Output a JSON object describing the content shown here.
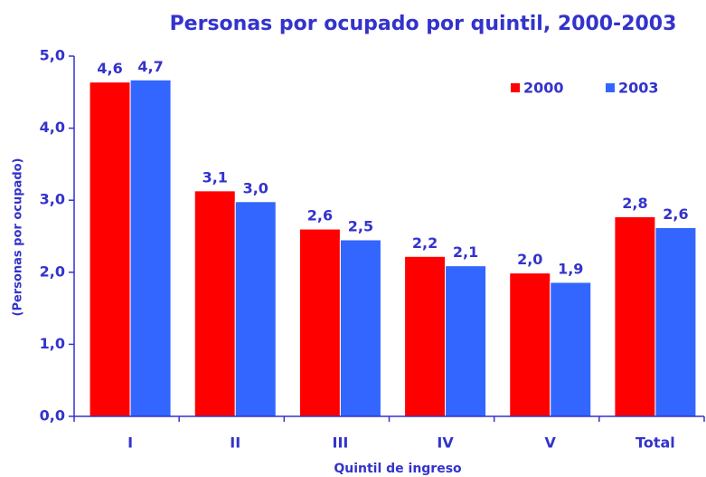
{
  "chart_data": {
    "type": "bar",
    "title": "Personas por ocupado por quintil, 2000-2003",
    "x_label": "Quintil de ingreso",
    "y_label": "(Personas por ocupado)",
    "categories": [
      "I",
      "II",
      "III",
      "IV",
      "V",
      "Total"
    ],
    "series": [
      {
        "name": "2000",
        "color": "#ff0000",
        "values": [
          4.64,
          3.13,
          2.6,
          2.22,
          1.99,
          2.77
        ],
        "value_labels": [
          "4,6",
          "3,1",
          "2,6",
          "2,2",
          "2,0",
          "2,8"
        ]
      },
      {
        "name": "2003",
        "color": "#3366ff",
        "values": [
          4.67,
          2.98,
          2.45,
          2.09,
          1.86,
          2.62
        ],
        "value_labels": [
          "4,7",
          "3,0",
          "2,5",
          "2,1",
          "1,9",
          "2,6"
        ]
      }
    ],
    "ylim": [
      0,
      5
    ],
    "yticks": [
      {
        "value": 0,
        "label": "0,0"
      },
      {
        "value": 1,
        "label": "1,0"
      },
      {
        "value": 2,
        "label": "2,0"
      },
      {
        "value": 3,
        "label": "3,0"
      },
      {
        "value": 4,
        "label": "4,0"
      },
      {
        "value": 5,
        "label": "5,0"
      }
    ],
    "grid": false,
    "legend": "upper right"
  }
}
